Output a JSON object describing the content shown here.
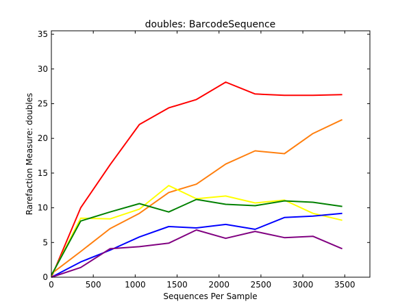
{
  "chart_data": {
    "type": "line",
    "title": "doubles: BarcodeSequence",
    "xlabel": "Sequences Per Sample",
    "ylabel": "Rarefaction Measure: doubles",
    "xlim": [
      0,
      3800
    ],
    "ylim": [
      0,
      35.5
    ],
    "xticks": [
      0,
      500,
      1000,
      1500,
      2000,
      2500,
      3000,
      3500
    ],
    "yticks": [
      0,
      5,
      10,
      15,
      20,
      25,
      30,
      35
    ],
    "grid": false,
    "legend": "none",
    "x": [
      1,
      350,
      700,
      1050,
      1400,
      1730,
      2080,
      2430,
      2780,
      3120,
      3470
    ],
    "series": [
      {
        "color": "#ff0000",
        "values": [
          0,
          10.0,
          16.2,
          22.0,
          24.4,
          25.6,
          28.1,
          26.4,
          26.2,
          26.2,
          26.3
        ]
      },
      {
        "color": "#ff7f0e",
        "values": [
          0.5,
          3.7,
          7.0,
          9.2,
          12.2,
          13.4,
          16.3,
          18.2,
          17.8,
          20.7,
          22.7
        ]
      },
      {
        "color": "#ffff00",
        "values": [
          0.2,
          8.5,
          8.4,
          9.8,
          13.2,
          11.3,
          11.7,
          10.7,
          11.1,
          9.2,
          8.2
        ]
      },
      {
        "color": "#008000",
        "values": [
          0.3,
          8.1,
          9.4,
          10.6,
          9.4,
          11.2,
          10.5,
          10.3,
          11.0,
          10.8,
          10.2
        ]
      },
      {
        "color": "#0000ff",
        "values": [
          0,
          2.2,
          3.9,
          5.8,
          7.3,
          7.1,
          7.6,
          6.9,
          8.6,
          8.8,
          9.2
        ]
      },
      {
        "color": "#800080",
        "values": [
          0,
          1.4,
          4.1,
          4.4,
          4.9,
          6.8,
          5.6,
          6.6,
          5.7,
          5.9,
          4.1
        ]
      }
    ]
  }
}
